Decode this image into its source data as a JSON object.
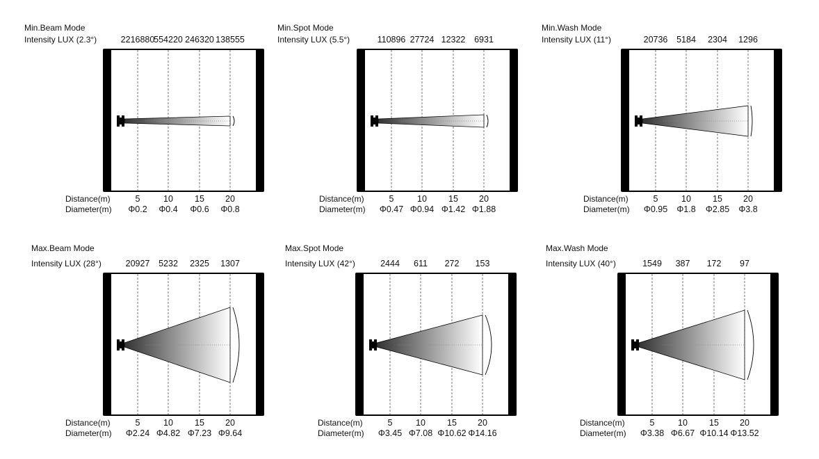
{
  "labels": {
    "distance": "Distance(m)",
    "diameter": "Diameter(m)"
  },
  "distances": [
    "5",
    "10",
    "15",
    "20"
  ],
  "panels": [
    {
      "mode": "Min.Beam Mode",
      "intensity_label": "Intensity LUX (2.3°)",
      "angle": "2.3°",
      "lux": [
        "2216880",
        "554220",
        "246320",
        "138555"
      ],
      "diameters": [
        "Φ0.2",
        "Φ0.4",
        "Φ0.6",
        "Φ0.8"
      ]
    },
    {
      "mode": "Min.Spot Mode",
      "intensity_label": "Intensity LUX (5.5°)",
      "angle": "5.5°",
      "lux": [
        "110896",
        "27724",
        "12322",
        "6931"
      ],
      "diameters": [
        "Φ0.47",
        "Φ0.94",
        "Φ1.42",
        "Φ1.88"
      ]
    },
    {
      "mode": "Min.Wash Mode",
      "intensity_label": "Intensity LUX (11°)",
      "angle": "11°",
      "lux": [
        "20736",
        "5184",
        "2304",
        "1296"
      ],
      "diameters": [
        "Φ0.95",
        "Φ1.8",
        "Φ2.85",
        "Φ3.8"
      ]
    },
    {
      "mode": "Max.Beam Mode",
      "intensity_label": "Intensity LUX (28°)",
      "angle": "28°",
      "lux": [
        "20927",
        "5232",
        "2325",
        "1307"
      ],
      "diameters": [
        "Φ2.24",
        "Φ4.82",
        "Φ7.23",
        "Φ9.64"
      ]
    },
    {
      "mode": "Max.Spot Mode",
      "intensity_label": "Intensity LUX (42°)",
      "angle": "42°",
      "lux": [
        "2444",
        "611",
        "272",
        "153"
      ],
      "diameters": [
        "Φ3.45",
        "Φ7.08",
        "Φ10.62",
        "Φ14.16"
      ]
    },
    {
      "mode": "Max.Wash Mode",
      "intensity_label": "Intensity LUX (40°)",
      "angle": "40°",
      "lux": [
        "1549",
        "387",
        "172",
        "97"
      ],
      "diameters": [
        "Φ3.38",
        "Φ6.67",
        "Φ10.14",
        "Φ13.52"
      ]
    }
  ]
}
